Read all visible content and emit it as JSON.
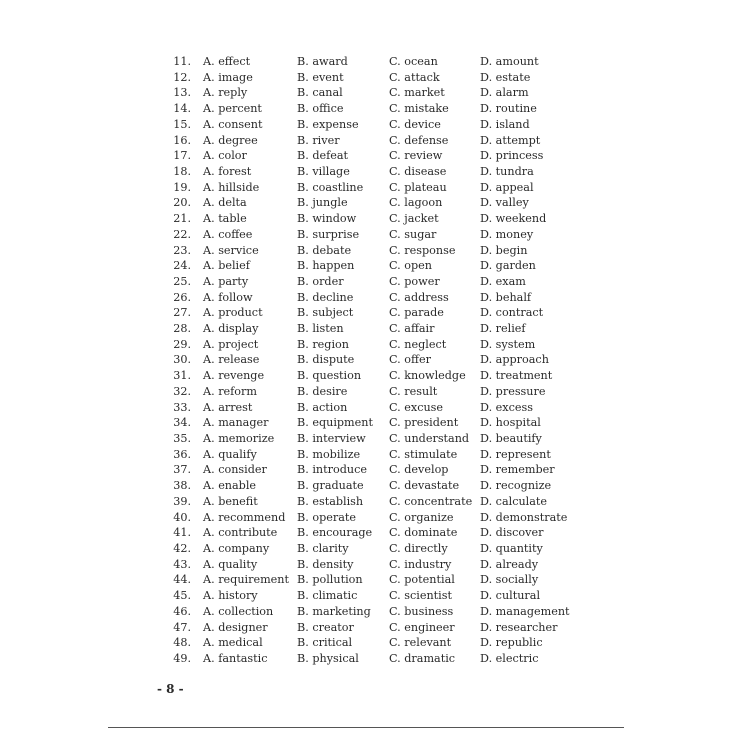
{
  "questions": [
    {
      "num": "11.",
      "a": "A. effect",
      "b": "B. award",
      "c": "C. ocean",
      "d": "D. amount"
    },
    {
      "num": "12.",
      "a": "A. image",
      "b": "B. event",
      "c": "C. attack",
      "d": "D. estate"
    },
    {
      "num": "13.",
      "a": "A. reply",
      "b": "B. canal",
      "c": "C. market",
      "d": "D. alarm"
    },
    {
      "num": "14.",
      "a": "A. percent",
      "b": "B. office",
      "c": "C. mistake",
      "d": "D. routine"
    },
    {
      "num": "15.",
      "a": "A. consent",
      "b": "B. expense",
      "c": "C. device",
      "d": "D. island"
    },
    {
      "num": "16.",
      "a": "A. degree",
      "b": "B. river",
      "c": "C. defense",
      "d": "D. attempt"
    },
    {
      "num": "17.",
      "a": "A. color",
      "b": "B. defeat",
      "c": "C. review",
      "d": "D. princess"
    },
    {
      "num": "18.",
      "a": "A. forest",
      "b": "B. village",
      "c": "C. disease",
      "d": "D. tundra"
    },
    {
      "num": "19.",
      "a": "A. hillside",
      "b": "B. coastline",
      "c": "C. plateau",
      "d": "D. appeal"
    },
    {
      "num": "20.",
      "a": "A. delta",
      "b": "B. jungle",
      "c": "C. lagoon",
      "d": "D. valley"
    },
    {
      "num": "21.",
      "a": "A. table",
      "b": "B. window",
      "c": "C. jacket",
      "d": "D. weekend"
    },
    {
      "num": "22.",
      "a": "A. coffee",
      "b": "B. surprise",
      "c": "C. sugar",
      "d": "D. money"
    },
    {
      "num": "23.",
      "a": "A. service",
      "b": "B. debate",
      "c": "C. response",
      "d": "D. begin"
    },
    {
      "num": "24.",
      "a": "A. belief",
      "b": "B. happen",
      "c": "C. open",
      "d": "D. garden"
    },
    {
      "num": "25.",
      "a": "A. party",
      "b": "B. order",
      "c": "C. power",
      "d": "D. exam"
    },
    {
      "num": "26.",
      "a": "A. follow",
      "b": "B. decline",
      "c": "C. address",
      "d": "D. behalf"
    },
    {
      "num": "27.",
      "a": "A. product",
      "b": "B. subject",
      "c": "C. parade",
      "d": "D. contract"
    },
    {
      "num": "28.",
      "a": "A. display",
      "b": "B. listen",
      "c": "C. affair",
      "d": "D. relief"
    },
    {
      "num": "29.",
      "a": "A. project",
      "b": "B. region",
      "c": "C. neglect",
      "d": "D. system"
    },
    {
      "num": "30.",
      "a": "A. release",
      "b": "B. dispute",
      "c": "C. offer",
      "d": "D. approach"
    },
    {
      "num": "31.",
      "a": "A. revenge",
      "b": "B. question",
      "c": "C. knowledge",
      "d": "D. treatment"
    },
    {
      "num": "32.",
      "a": "A. reform",
      "b": "B. desire",
      "c": "C. result",
      "d": "D. pressure"
    },
    {
      "num": "33.",
      "a": "A. arrest",
      "b": "B. action",
      "c": "C. excuse",
      "d": "D. excess"
    },
    {
      "num": "34.",
      "a": "A. manager",
      "b": "B. equipment",
      "c": "C. president",
      "d": "D. hospital"
    },
    {
      "num": "35.",
      "a": "A. memorize",
      "b": "B. interview",
      "c": "C. understand",
      "d": "D. beautify"
    },
    {
      "num": "36.",
      "a": "A. qualify",
      "b": "B. mobilize",
      "c": "C. stimulate",
      "d": "D. represent"
    },
    {
      "num": "37.",
      "a": "A. consider",
      "b": "B. introduce",
      "c": "C. develop",
      "d": "D. remember"
    },
    {
      "num": "38.",
      "a": "A. enable",
      "b": "B. graduate",
      "c": "C. devastate",
      "d": "D. recognize"
    },
    {
      "num": "39.",
      "a": "A. benefit",
      "b": "B. establish",
      "c": "C. concentrate",
      "d": "D. calculate"
    },
    {
      "num": "40.",
      "a": "A. recommend",
      "b": "B. operate",
      "c": "C. organize",
      "d": "D. demonstrate"
    },
    {
      "num": "41.",
      "a": "A. contribute",
      "b": "B. encourage",
      "c": "C. dominate",
      "d": "D. discover"
    },
    {
      "num": "42.",
      "a": "A. company",
      "b": "B. clarity",
      "c": "C. directly",
      "d": "D. quantity"
    },
    {
      "num": "43.",
      "a": "A. quality",
      "b": "B. density",
      "c": "C. industry",
      "d": "D. already"
    },
    {
      "num": "44.",
      "a": "A. requirement",
      "b": "B. pollution",
      "c": "C. potential",
      "d": "D. socially"
    },
    {
      "num": "45.",
      "a": "A. history",
      "b": "B. climatic",
      "c": "C. scientist",
      "d": "D. cultural"
    },
    {
      "num": "46.",
      "a": "A. collection",
      "b": "B. marketing",
      "c": "C. business",
      "d": "D. management"
    },
    {
      "num": "47.",
      "a": "A. designer",
      "b": "B. creator",
      "c": "C. engineer",
      "d": "D. researcher"
    },
    {
      "num": "48.",
      "a": "A. medical",
      "b": "B. critical",
      "c": "C. relevant",
      "d": "D. republic"
    },
    {
      "num": "49.",
      "a": "A. fantastic",
      "b": "B. physical",
      "c": "C. dramatic",
      "d": "D. electric"
    }
  ],
  "footer": {
    "page_number": "- 8 -"
  }
}
